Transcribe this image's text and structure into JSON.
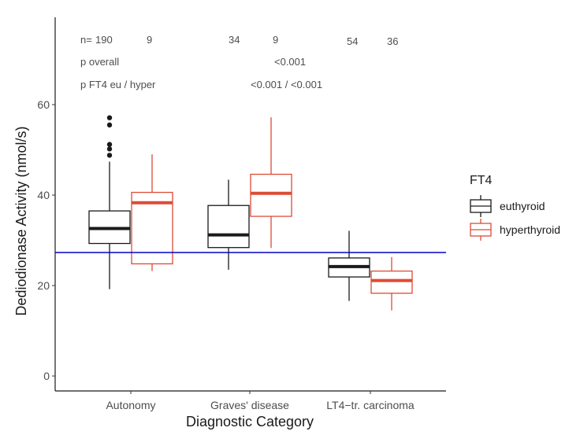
{
  "chart_data": {
    "type": "boxplot",
    "xlabel": "Diagnostic Category",
    "ylabel": "Dediodionase Activity (nmol/s)",
    "categories": [
      "Autonomy",
      "Graves' disease",
      "LT4−tr. carcinoma"
    ],
    "ylim": [
      -2,
      75
    ],
    "yticks": [
      0,
      20,
      40,
      60
    ],
    "grid": false,
    "reference_line": {
      "y": 27.3,
      "color": "#0000cc"
    },
    "legend": {
      "title": "FT4",
      "placement": "right",
      "entries": [
        "euthyroid",
        "hyperthyroid"
      ]
    },
    "series": [
      {
        "name": "euthyroid",
        "color": "#1a1a1a",
        "boxes": [
          {
            "min": 19.2,
            "q1": 29.3,
            "median": 32.6,
            "q3": 36.5,
            "max": 47.4,
            "outliers": [
              48.8,
              50.2,
              51.2,
              55.5,
              57.1
            ]
          },
          {
            "min": 23.5,
            "q1": 28.4,
            "median": 31.2,
            "q3": 37.7,
            "max": 43.4,
            "outliers": []
          },
          {
            "min": 16.6,
            "q1": 21.9,
            "median": 24.2,
            "q3": 26.1,
            "max": 32.1,
            "outliers": []
          }
        ]
      },
      {
        "name": "hyperthyroid",
        "color": "#dc4c37",
        "boxes": [
          {
            "min": 23.2,
            "q1": 24.8,
            "median": 38.3,
            "q3": 40.6,
            "max": 49.0,
            "outliers": []
          },
          {
            "min": 28.3,
            "q1": 35.3,
            "median": 40.4,
            "q3": 44.6,
            "max": 57.2,
            "outliers": []
          },
          {
            "min": 14.5,
            "q1": 18.3,
            "median": 21.1,
            "q3": 23.2,
            "max": 26.3,
            "outliers": []
          }
        ]
      }
    ],
    "annotations": {
      "n_label": "n=",
      "n_values": [
        {
          "euthyroid": "190",
          "hyperthyroid": "9"
        },
        {
          "euthyroid": "34",
          "hyperthyroid": "9"
        },
        {
          "euthyroid": "54",
          "hyperthyroid": "36"
        }
      ],
      "p_overall_label": "p overall",
      "p_overall_value": "<0.001",
      "p_ft4_label": "p FT4 eu / hyper",
      "p_ft4_value": "<0.001 / <0.001"
    }
  }
}
